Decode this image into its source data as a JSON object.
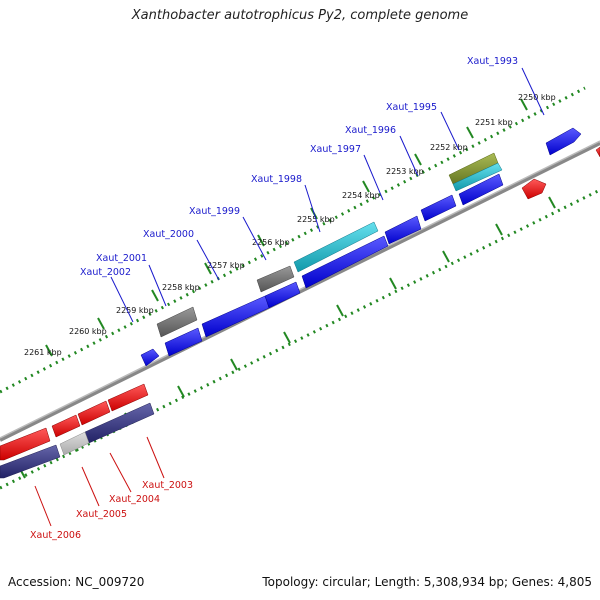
{
  "title": "Xanthobacter autotrophicus Py2, complete genome",
  "footer": {
    "accession": "Accession: NC_009720",
    "summary": "Topology: circular; Length: 5,308,934 bp; Genes: 4,805"
  },
  "colors": {
    "forward_gene": "#1010ee",
    "reverse_gene": "#ee1010",
    "gray_gene": "#777777",
    "teal_gene": "#22bbcc",
    "olive_gene": "#889933",
    "navy_gene": "#333388",
    "tick_green": "#228822",
    "backbone": "#999999"
  },
  "scale_ticks": [
    {
      "label": "2250 kbp"
    },
    {
      "label": "2251 kbp"
    },
    {
      "label": "2252 kbp"
    },
    {
      "label": "2253 kbp"
    },
    {
      "label": "2254 kbp"
    },
    {
      "label": "2255 kbp"
    },
    {
      "label": "2256 kbp"
    },
    {
      "label": "2257 kbp"
    },
    {
      "label": "2258 kbp"
    },
    {
      "label": "2259 kbp"
    },
    {
      "label": "2260 kbp"
    },
    {
      "label": "2261 kbp"
    }
  ],
  "gene_labels_forward": [
    {
      "name": "Xaut_1993"
    },
    {
      "name": "Xaut_1995"
    },
    {
      "name": "Xaut_1996"
    },
    {
      "name": "Xaut_1997"
    },
    {
      "name": "Xaut_1998"
    },
    {
      "name": "Xaut_1999"
    },
    {
      "name": "Xaut_2000"
    },
    {
      "name": "Xaut_2001"
    },
    {
      "name": "Xaut_2002"
    }
  ],
  "gene_labels_reverse": [
    {
      "name": "Xaut_2003"
    },
    {
      "name": "Xaut_2004"
    },
    {
      "name": "Xaut_2005"
    },
    {
      "name": "Xaut_2006"
    }
  ]
}
